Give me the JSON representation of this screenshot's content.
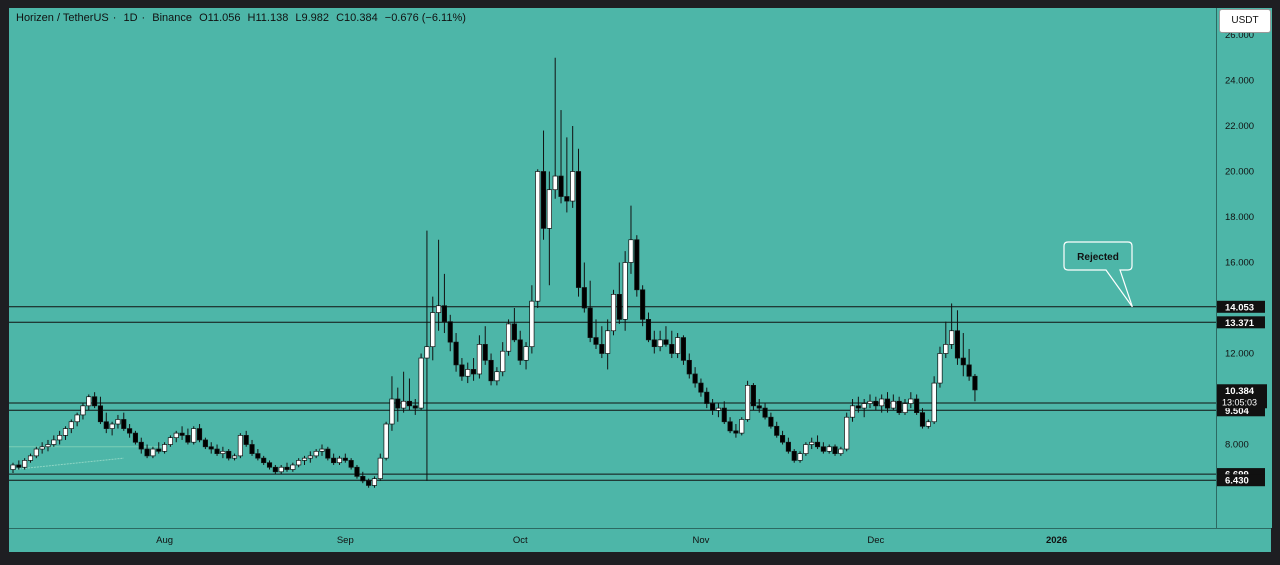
{
  "header": {
    "symbol": "Horizen / TetherUS",
    "interval": "1D",
    "exchange": "Binance",
    "ohlc": {
      "open": "O11.056",
      "high": "H11.138",
      "low": "L9.982",
      "close": "C10.384",
      "change": "−0.676 (−6.11%)"
    }
  },
  "currency_button": "USDT",
  "annotation": {
    "label": "Rejected"
  },
  "colors": {
    "background": "#4db6a8",
    "candle_up": "#ffffff",
    "candle_down": "#000000",
    "line": "#111111"
  },
  "chart_data": {
    "type": "candlestick",
    "ylim": [
      5.0,
      26.0
    ],
    "y_ticks": [
      {
        "v": 8,
        "label": "8.000"
      },
      {
        "v": 12,
        "label": "12.000"
      },
      {
        "v": 16,
        "label": "16.000"
      },
      {
        "v": 18,
        "label": "18.000"
      },
      {
        "v": 20,
        "label": "20.000"
      },
      {
        "v": 22,
        "label": "22.000"
      },
      {
        "v": 24,
        "label": "24.000"
      },
      {
        "v": 26,
        "label": "26.000"
      }
    ],
    "x_ticks": [
      {
        "i": 26,
        "label": "Aug",
        "bold": false
      },
      {
        "i": 57,
        "label": "Sep",
        "bold": false
      },
      {
        "i": 87,
        "label": "Oct",
        "bold": false
      },
      {
        "i": 118,
        "label": "Nov",
        "bold": false
      },
      {
        "i": 148,
        "label": "Dec",
        "bold": false
      },
      {
        "i": 179,
        "label": "2026",
        "bold": true
      }
    ],
    "price_levels": [
      {
        "value": 14.053,
        "label": "14.053"
      },
      {
        "value": 13.371,
        "label": "13.371"
      },
      {
        "value": 9.824,
        "label": "9.824"
      },
      {
        "value": 9.504,
        "label": "9.504"
      },
      {
        "value": 6.699,
        "label": "6.699"
      },
      {
        "value": 6.43,
        "label": "6.430"
      }
    ],
    "last_price": {
      "value": 10.384,
      "label": "10.384",
      "countdown": "13:05:03"
    },
    "candles": [
      [
        6.9,
        7.2,
        6.75,
        7.1
      ],
      [
        7.1,
        7.3,
        6.9,
        7.0
      ],
      [
        7.0,
        7.4,
        6.9,
        7.3
      ],
      [
        7.3,
        7.6,
        7.2,
        7.5
      ],
      [
        7.5,
        7.9,
        7.4,
        7.8
      ],
      [
        7.8,
        8.1,
        7.6,
        7.9
      ],
      [
        7.9,
        8.2,
        7.7,
        8.0
      ],
      [
        8.0,
        8.4,
        7.9,
        8.2
      ],
      [
        8.2,
        8.6,
        8.0,
        8.4
      ],
      [
        8.4,
        8.8,
        8.2,
        8.7
      ],
      [
        8.7,
        9.1,
        8.5,
        9.0
      ],
      [
        9.0,
        9.4,
        8.8,
        9.3
      ],
      [
        9.3,
        9.8,
        9.1,
        9.7
      ],
      [
        9.7,
        10.2,
        9.5,
        10.1
      ],
      [
        10.1,
        10.3,
        9.6,
        9.7
      ],
      [
        9.7,
        10.1,
        8.9,
        9.0
      ],
      [
        9.0,
        9.4,
        8.5,
        8.7
      ],
      [
        8.7,
        9.0,
        8.4,
        8.9
      ],
      [
        8.9,
        9.3,
        8.7,
        9.1
      ],
      [
        9.1,
        9.4,
        8.6,
        8.7
      ],
      [
        8.7,
        8.9,
        8.3,
        8.5
      ],
      [
        8.5,
        8.6,
        8.0,
        8.1
      ],
      [
        8.1,
        8.3,
        7.6,
        7.8
      ],
      [
        7.8,
        8.0,
        7.4,
        7.5
      ],
      [
        7.5,
        7.9,
        7.4,
        7.8
      ],
      [
        7.8,
        8.1,
        7.6,
        7.7
      ],
      [
        7.7,
        8.1,
        7.6,
        8.0
      ],
      [
        8.0,
        8.4,
        7.9,
        8.3
      ],
      [
        8.3,
        8.6,
        8.1,
        8.5
      ],
      [
        8.5,
        8.8,
        8.2,
        8.4
      ],
      [
        8.4,
        8.7,
        8.0,
        8.1
      ],
      [
        8.1,
        8.8,
        8.0,
        8.7
      ],
      [
        8.7,
        8.9,
        8.1,
        8.2
      ],
      [
        8.2,
        8.3,
        7.8,
        7.9
      ],
      [
        7.9,
        8.1,
        7.6,
        7.8
      ],
      [
        7.8,
        8.0,
        7.5,
        7.6
      ],
      [
        7.6,
        7.9,
        7.4,
        7.7
      ],
      [
        7.7,
        7.8,
        7.3,
        7.4
      ],
      [
        7.4,
        7.6,
        7.3,
        7.5
      ],
      [
        7.5,
        8.5,
        7.4,
        8.4
      ],
      [
        8.4,
        8.6,
        7.9,
        8.0
      ],
      [
        8.0,
        8.2,
        7.5,
        7.6
      ],
      [
        7.6,
        7.8,
        7.3,
        7.4
      ],
      [
        7.4,
        7.5,
        7.1,
        7.2
      ],
      [
        7.2,
        7.3,
        6.9,
        7.0
      ],
      [
        7.0,
        7.1,
        6.7,
        6.8
      ],
      [
        6.8,
        7.1,
        6.7,
        7.0
      ],
      [
        7.0,
        7.2,
        6.8,
        6.9
      ],
      [
        6.9,
        7.2,
        6.8,
        7.1
      ],
      [
        7.1,
        7.4,
        7.0,
        7.3
      ],
      [
        7.3,
        7.5,
        7.1,
        7.4
      ],
      [
        7.4,
        7.7,
        7.2,
        7.5
      ],
      [
        7.5,
        7.8,
        7.4,
        7.7
      ],
      [
        7.7,
        8.0,
        7.5,
        7.8
      ],
      [
        7.8,
        7.9,
        7.3,
        7.4
      ],
      [
        7.4,
        7.6,
        7.1,
        7.2
      ],
      [
        7.2,
        7.5,
        7.1,
        7.4
      ],
      [
        7.4,
        7.6,
        7.2,
        7.3
      ],
      [
        7.3,
        7.4,
        6.9,
        7.0
      ],
      [
        7.0,
        7.1,
        6.5,
        6.6
      ],
      [
        6.6,
        6.8,
        6.3,
        6.4
      ],
      [
        6.4,
        6.5,
        6.1,
        6.2
      ],
      [
        6.2,
        6.6,
        6.1,
        6.5
      ],
      [
        6.5,
        7.6,
        6.4,
        7.4
      ],
      [
        7.4,
        9.0,
        7.3,
        8.9
      ],
      [
        8.9,
        11.0,
        8.6,
        10.0
      ],
      [
        10.0,
        10.5,
        9.0,
        9.6
      ],
      [
        9.6,
        11.2,
        9.4,
        9.9
      ],
      [
        9.9,
        10.9,
        9.5,
        9.7
      ],
      [
        9.7,
        10.0,
        9.3,
        9.6
      ],
      [
        9.6,
        12.0,
        9.5,
        11.8
      ],
      [
        11.8,
        17.4,
        6.4,
        12.3
      ],
      [
        12.3,
        14.5,
        11.7,
        13.8
      ],
      [
        13.8,
        17.0,
        13.0,
        14.1
      ],
      [
        14.1,
        15.5,
        12.9,
        13.4
      ],
      [
        13.4,
        13.7,
        12.1,
        12.5
      ],
      [
        12.5,
        12.9,
        11.2,
        11.5
      ],
      [
        11.5,
        11.8,
        10.8,
        11.0
      ],
      [
        11.0,
        11.6,
        10.7,
        11.3
      ],
      [
        11.3,
        11.8,
        10.8,
        11.1
      ],
      [
        11.1,
        12.8,
        10.9,
        12.4
      ],
      [
        12.4,
        13.2,
        11.5,
        11.7
      ],
      [
        11.7,
        12.0,
        10.6,
        10.8
      ],
      [
        10.8,
        11.4,
        10.6,
        11.2
      ],
      [
        11.2,
        12.5,
        11.0,
        12.1
      ],
      [
        12.1,
        13.5,
        11.9,
        13.3
      ],
      [
        13.3,
        14.0,
        12.5,
        12.6
      ],
      [
        12.6,
        13.0,
        11.5,
        11.7
      ],
      [
        11.7,
        12.5,
        11.3,
        12.3
      ],
      [
        12.3,
        15.0,
        12.0,
        14.3
      ],
      [
        14.3,
        20.1,
        14.0,
        20.0
      ],
      [
        20.0,
        21.8,
        17.0,
        17.5
      ],
      [
        17.5,
        20.0,
        15.0,
        19.2
      ],
      [
        19.2,
        25.0,
        18.8,
        19.8
      ],
      [
        19.8,
        22.7,
        18.6,
        18.9
      ],
      [
        18.9,
        21.5,
        18.2,
        18.7
      ],
      [
        18.7,
        22.0,
        18.4,
        20.0
      ],
      [
        20.0,
        21.0,
        14.5,
        14.9
      ],
      [
        14.9,
        16.0,
        13.8,
        14.0
      ],
      [
        14.0,
        15.2,
        12.5,
        12.7
      ],
      [
        12.7,
        13.5,
        12.2,
        12.4
      ],
      [
        12.4,
        13.2,
        11.8,
        12.0
      ],
      [
        12.0,
        13.5,
        11.3,
        13.0
      ],
      [
        13.0,
        14.8,
        12.8,
        14.6
      ],
      [
        14.6,
        16.0,
        13.3,
        13.5
      ],
      [
        13.5,
        16.5,
        13.0,
        16.0
      ],
      [
        16.0,
        18.5,
        15.5,
        17.0
      ],
      [
        17.0,
        17.2,
        14.5,
        14.8
      ],
      [
        14.8,
        15.0,
        13.2,
        13.5
      ],
      [
        13.5,
        13.8,
        12.5,
        12.6
      ],
      [
        12.6,
        13.0,
        12.0,
        12.3
      ],
      [
        12.3,
        13.0,
        12.1,
        12.6
      ],
      [
        12.6,
        13.2,
        12.3,
        12.4
      ],
      [
        12.4,
        13.0,
        11.8,
        12.0
      ],
      [
        12.0,
        12.9,
        11.8,
        12.7
      ],
      [
        12.7,
        12.8,
        11.5,
        11.7
      ],
      [
        11.7,
        12.0,
        10.9,
        11.1
      ],
      [
        11.1,
        11.4,
        10.5,
        10.7
      ],
      [
        10.7,
        10.9,
        10.1,
        10.3
      ],
      [
        10.3,
        10.5,
        9.6,
        9.8
      ],
      [
        9.8,
        10.0,
        9.3,
        9.5
      ],
      [
        9.5,
        9.8,
        9.2,
        9.6
      ],
      [
        9.6,
        9.9,
        8.9,
        9.0
      ],
      [
        9.0,
        9.2,
        8.5,
        8.6
      ],
      [
        8.6,
        8.9,
        8.3,
        8.5
      ],
      [
        8.5,
        9.2,
        8.4,
        9.1
      ],
      [
        9.1,
        10.8,
        9.0,
        10.6
      ],
      [
        10.6,
        10.7,
        9.5,
        9.7
      ],
      [
        9.7,
        10.0,
        9.4,
        9.6
      ],
      [
        9.6,
        9.8,
        9.1,
        9.2
      ],
      [
        9.2,
        9.4,
        8.7,
        8.8
      ],
      [
        8.8,
        9.0,
        8.3,
        8.4
      ],
      [
        8.4,
        8.6,
        8.0,
        8.1
      ],
      [
        8.1,
        8.3,
        7.6,
        7.7
      ],
      [
        7.7,
        7.8,
        7.2,
        7.3
      ],
      [
        7.3,
        7.7,
        7.2,
        7.6
      ],
      [
        7.6,
        8.1,
        7.5,
        8.0
      ],
      [
        8.0,
        8.3,
        7.8,
        8.1
      ],
      [
        8.1,
        8.4,
        7.8,
        7.9
      ],
      [
        7.9,
        8.1,
        7.6,
        7.7
      ],
      [
        7.7,
        8.0,
        7.6,
        7.9
      ],
      [
        7.9,
        8.0,
        7.5,
        7.6
      ],
      [
        7.6,
        7.9,
        7.5,
        7.8
      ],
      [
        7.8,
        9.4,
        7.7,
        9.2
      ],
      [
        9.2,
        10.0,
        9.0,
        9.7
      ],
      [
        9.7,
        10.1,
        9.4,
        9.6
      ],
      [
        9.6,
        10.0,
        9.2,
        9.8
      ],
      [
        9.8,
        10.2,
        9.6,
        9.9
      ],
      [
        9.9,
        10.1,
        9.5,
        9.7
      ],
      [
        9.7,
        10.2,
        9.4,
        10.0
      ],
      [
        10.0,
        10.3,
        9.4,
        9.6
      ],
      [
        9.6,
        10.2,
        9.5,
        9.9
      ],
      [
        9.9,
        10.1,
        9.3,
        9.4
      ],
      [
        9.4,
        10.0,
        9.3,
        9.8
      ],
      [
        9.8,
        10.3,
        9.6,
        10.0
      ],
      [
        10.0,
        10.2,
        9.3,
        9.4
      ],
      [
        9.4,
        9.6,
        8.7,
        8.8
      ],
      [
        8.8,
        9.1,
        8.7,
        9.0
      ],
      [
        9.0,
        11.0,
        8.9,
        10.7
      ],
      [
        10.7,
        12.3,
        10.5,
        12.0
      ],
      [
        12.0,
        13.4,
        11.8,
        12.4
      ],
      [
        12.4,
        14.2,
        12.2,
        13.0
      ],
      [
        13.0,
        13.9,
        11.5,
        11.8
      ],
      [
        11.8,
        12.9,
        11.0,
        11.5
      ],
      [
        11.5,
        12.2,
        10.8,
        11.0
      ],
      [
        11.0,
        11.1,
        9.9,
        10.4
      ]
    ]
  }
}
